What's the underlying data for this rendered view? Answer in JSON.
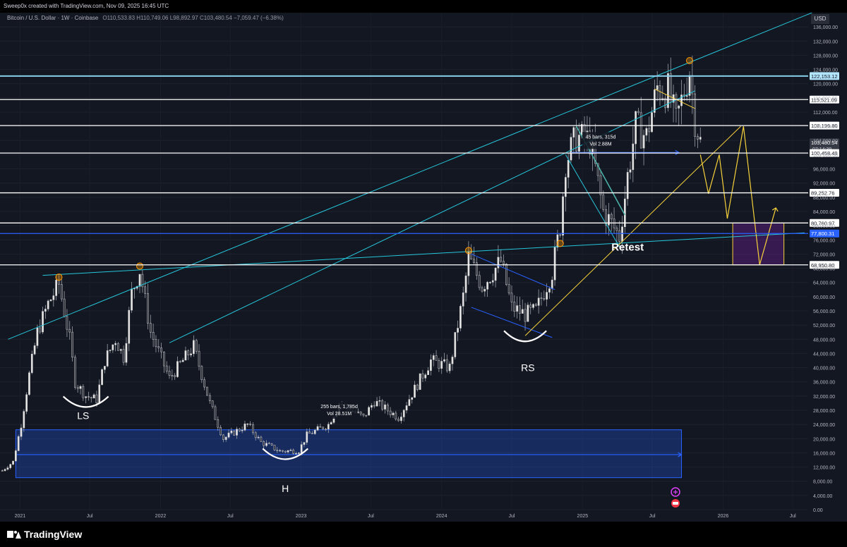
{
  "header": {
    "created_by": "Sweep0x created with TradingView.com, Nov 09, 2025 16:45 UTC",
    "symbol": "Bitcoin / U.S. Dollar · 1W · Coinbase",
    "ohlc": "O110,533.83  H110,749.06  L98,892.97  C103,480.54  −7,059.47 (−6.38%)"
  },
  "currency": "USD",
  "footer": {
    "brand": "TradingView"
  },
  "chart_data": {
    "type": "candlestick",
    "title": "Bitcoin / U.S. Dollar · 1W · Coinbase",
    "xlim": [
      "2020-11-10",
      "2026-08-10"
    ],
    "ylim": [
      0,
      140000
    ],
    "y_ticks": [
      0,
      4000,
      8000,
      12000,
      16000,
      20000,
      24000,
      28000,
      32000,
      36000,
      40000,
      44000,
      48000,
      52000,
      56000,
      60000,
      64000,
      68000,
      72000,
      76000,
      80000,
      84000,
      88000,
      92000,
      96000,
      100000,
      104000,
      108000,
      112000,
      116000,
      120000,
      124000,
      128000,
      132000,
      136000
    ],
    "x_ticks": [
      {
        "label": "2021",
        "date": "2021-01-01"
      },
      {
        "label": "Jul",
        "date": "2021-07-01"
      },
      {
        "label": "2022",
        "date": "2022-01-01"
      },
      {
        "label": "Jul",
        "date": "2022-07-01"
      },
      {
        "label": "2023",
        "date": "2023-01-01"
      },
      {
        "label": "Jul",
        "date": "2023-07-01"
      },
      {
        "label": "2024",
        "date": "2024-01-01"
      },
      {
        "label": "Jul",
        "date": "2024-07-01"
      },
      {
        "label": "2025",
        "date": "2025-01-01"
      },
      {
        "label": "Jul",
        "date": "2025-07-01"
      },
      {
        "label": "2026",
        "date": "2026-01-01"
      },
      {
        "label": "Jul",
        "date": "2026-07-01"
      }
    ],
    "price_path": [
      [
        "2020-11-16",
        11000
      ],
      [
        "2020-12-14",
        13500
      ],
      [
        "2021-01-04",
        24000
      ],
      [
        "2021-01-25",
        38000
      ],
      [
        "2021-02-15",
        50000
      ],
      [
        "2021-03-15",
        58000
      ],
      [
        "2021-04-12",
        63500
      ],
      [
        "2021-05-10",
        48000
      ],
      [
        "2021-05-24",
        36000
      ],
      [
        "2021-06-21",
        32000
      ],
      [
        "2021-07-19",
        31000
      ],
      [
        "2021-08-09",
        42000
      ],
      [
        "2021-09-06",
        48000
      ],
      [
        "2021-09-27",
        43000
      ],
      [
        "2021-10-18",
        61000
      ],
      [
        "2021-11-08",
        67500
      ],
      [
        "2021-12-06",
        50000
      ],
      [
        "2022-01-24",
        37000
      ],
      [
        "2022-03-28",
        46000
      ],
      [
        "2022-05-09",
        30000
      ],
      [
        "2022-06-13",
        20000
      ],
      [
        "2022-08-15",
        24000
      ],
      [
        "2022-09-19",
        19000
      ],
      [
        "2022-11-07",
        16500
      ],
      [
        "2022-12-26",
        16600
      ],
      [
        "2023-01-16",
        21000
      ],
      [
        "2023-03-13",
        24000
      ],
      [
        "2023-04-10",
        30000
      ],
      [
        "2023-06-12",
        26000
      ],
      [
        "2023-07-10",
        30500
      ],
      [
        "2023-09-11",
        26000
      ],
      [
        "2023-10-23",
        34000
      ],
      [
        "2023-12-04",
        42000
      ],
      [
        "2024-01-22",
        40000
      ],
      [
        "2024-02-26",
        60000
      ],
      [
        "2024-03-11",
        71000
      ],
      [
        "2024-04-15",
        63000
      ],
      [
        "2024-06-03",
        70000
      ],
      [
        "2024-07-01",
        57000
      ],
      [
        "2024-08-05",
        55000
      ],
      [
        "2024-09-02",
        56000
      ],
      [
        "2024-10-14",
        67000
      ],
      [
        "2024-11-04",
        80000
      ],
      [
        "2024-11-18",
        98000
      ],
      [
        "2024-12-16",
        105000
      ],
      [
        "2025-01-20",
        104000
      ],
      [
        "2025-02-24",
        84000
      ],
      [
        "2025-04-07",
        77000
      ],
      [
        "2025-04-28",
        94000
      ],
      [
        "2025-05-19",
        108000
      ],
      [
        "2025-06-16",
        105000
      ],
      [
        "2025-07-14",
        119000
      ],
      [
        "2025-08-11",
        118000
      ],
      [
        "2025-09-01",
        109000
      ],
      [
        "2025-10-06",
        124000
      ],
      [
        "2025-10-20",
        110000
      ],
      [
        "2025-11-03",
        103480
      ]
    ],
    "horizontal_levels": [
      {
        "value": 122153.12,
        "label": "122,153.12",
        "color": "#87ceeb"
      },
      {
        "value": 115521.09,
        "label": "115,521.09",
        "color": "#ffffff"
      },
      {
        "value": 108196.8,
        "label": "108,196.80",
        "color": "#ffffff"
      },
      {
        "value": 103480.54,
        "label": "103,480.54",
        "sublabel": "07:14:39",
        "color": "#2a2e39",
        "current": true
      },
      {
        "value": 100458.49,
        "label": "100,458.49",
        "color": "#ffffff"
      },
      {
        "value": 89252.76,
        "label": "89,252.76",
        "color": "#ffffff"
      },
      {
        "value": 80760.97,
        "label": "80,760.97",
        "color": "#ffffff"
      },
      {
        "value": 77800.31,
        "label": "77,800.31",
        "color": "#2962ff"
      },
      {
        "value": 68950.8,
        "label": "68,950.80",
        "color": "#ffffff"
      }
    ],
    "annotations": [
      {
        "text": "LS",
        "date": "2021-06-14",
        "value": 25500
      },
      {
        "text": "H",
        "date": "2022-11-21",
        "value": 5000
      },
      {
        "text": "RS",
        "date": "2024-08-12",
        "value": 39000
      },
      {
        "text": "Retest",
        "date": "2025-04-28",
        "value": 73000
      }
    ],
    "measure_labels": [
      {
        "lines": [
          "45 bars, 315d",
          "Vol 2.88M"
        ],
        "date": "2025-02-17",
        "value": 104000
      },
      {
        "lines": [
          "255 bars, 1,785d",
          "Vol 28.51M"
        ],
        "date": "2023-04-10",
        "value": 28000
      }
    ],
    "projection_path": [
      [
        "2025-11-03",
        100000
      ],
      [
        "2025-11-24",
        89000
      ],
      [
        "2025-12-22",
        100000
      ],
      [
        "2026-01-12",
        82000
      ],
      [
        "2026-02-23",
        108000
      ],
      [
        "2026-04-06",
        69000
      ],
      [
        "2026-05-18",
        85000
      ]
    ],
    "target_zone": {
      "from": "2026-01-26",
      "to": "2026-06-08",
      "low": 68950,
      "high": 80760
    }
  }
}
